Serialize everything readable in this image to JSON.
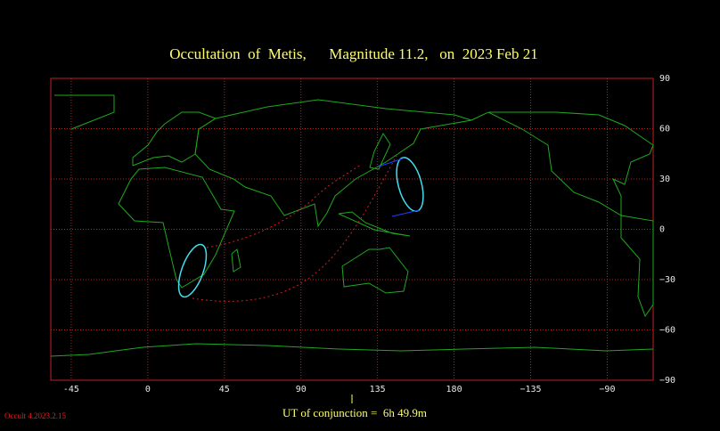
{
  "chart_data": {
    "type": "map",
    "title": "Occultation  of  Metis,      Magnitude 11.2,   on  2023 Feb 21",
    "xlim": [
      -57,
      297
    ],
    "ylim": [
      -90,
      90
    ],
    "xticks": [
      -45,
      0,
      45,
      90,
      135,
      180,
      {
        "value": 225,
        "label": "−135"
      },
      {
        "value": 270,
        "label": "−90"
      }
    ],
    "yticks": [
      90,
      60,
      30,
      0,
      {
        "value": -30,
        "label": "−30"
      },
      {
        "value": -60,
        "label": "−60"
      },
      {
        "value": -90,
        "label": "−90"
      }
    ],
    "grid": true,
    "grid_color": "#c02020",
    "conjunction_note": "UT of conjunction =  6h 49.9m",
    "version": "Occult 4.2023.2.15"
  }
}
